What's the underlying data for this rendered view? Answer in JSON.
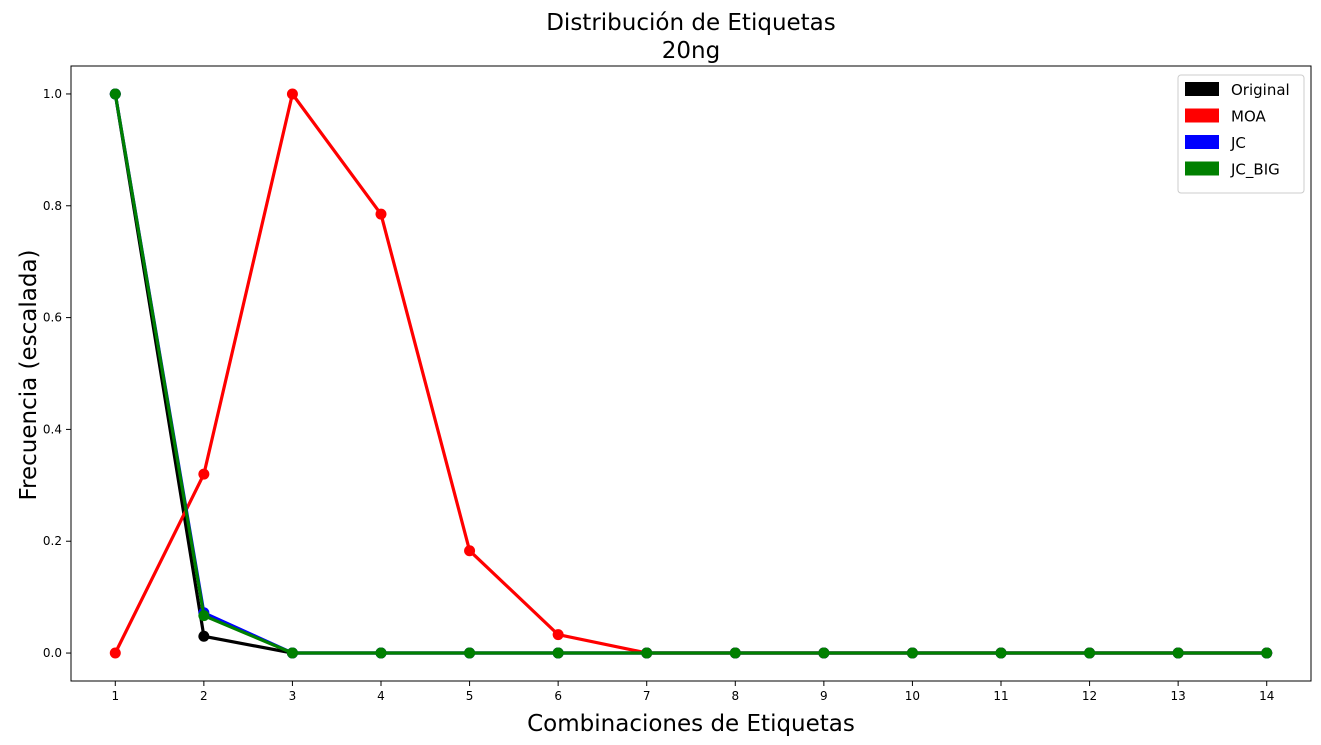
{
  "chart_data": {
    "type": "line",
    "title": "Distribución de Etiquetas",
    "subtitle": "20ng",
    "xlabel": "Combinaciones de Etiquetas",
    "ylabel": "Frecuencia (escalada)",
    "x": [
      1,
      2,
      3,
      4,
      5,
      6,
      7,
      8,
      9,
      10,
      11,
      12,
      13,
      14
    ],
    "xticks": [
      "1",
      "2",
      "3",
      "4",
      "5",
      "6",
      "7",
      "8",
      "9",
      "10",
      "11",
      "12",
      "13",
      "14"
    ],
    "yticks": [
      "0.0",
      "0.2",
      "0.4",
      "0.6",
      "0.8",
      "1.0"
    ],
    "xlim": [
      0.5,
      14.5
    ],
    "ylim": [
      -0.05,
      1.05
    ],
    "grid": false,
    "legend_position": "top-right",
    "series": [
      {
        "name": "Original",
        "color": "#000000",
        "values": [
          1.0,
          0.03,
          0.0,
          0.0,
          0.0,
          0.0,
          0.0,
          0.0,
          0.0,
          0.0,
          0.0,
          0.0,
          0.0,
          0.0
        ]
      },
      {
        "name": "MOA",
        "color": "#ff0000",
        "values": [
          0.0,
          0.32,
          1.0,
          0.785,
          0.183,
          0.033,
          0.0,
          0.0,
          0.0,
          0.0,
          0.0,
          0.0,
          0.0,
          0.0
        ]
      },
      {
        "name": "JC",
        "color": "#0000ff",
        "values": [
          1.0,
          0.072,
          0.0,
          0.0,
          0.0,
          0.0,
          0.0,
          0.0,
          0.0,
          0.0,
          0.0,
          0.0,
          0.0,
          0.0
        ]
      },
      {
        "name": "JC_BIG",
        "color": "#008000",
        "values": [
          1.0,
          0.067,
          0.0,
          0.0,
          0.0,
          0.0,
          0.0,
          0.0,
          0.0,
          0.0,
          0.0,
          0.0,
          0.0,
          0.0
        ]
      }
    ]
  }
}
